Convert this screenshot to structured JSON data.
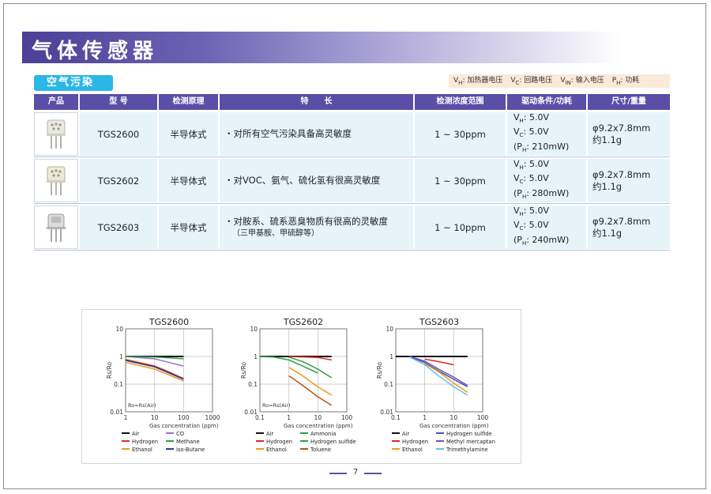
{
  "page": {
    "title": "气体传感器",
    "category": "空气污染",
    "page_number": "7"
  },
  "legend": [
    {
      "sym": "V",
      "sub": "H",
      "text": ": 加热器电压"
    },
    {
      "sym": "V",
      "sub": "C",
      "text": ": 回路电压"
    },
    {
      "sym": "V",
      "sub": "IN",
      "text": ": 输入电压"
    },
    {
      "sym": "P",
      "sub": "H",
      "text": ": 功耗"
    }
  ],
  "table": {
    "headers": [
      "产品",
      "型 号",
      "检测原理",
      "特　　长",
      "检测浓度范围",
      "驱动条件/功耗",
      "尺寸/重量"
    ],
    "rows": [
      {
        "model": "TGS2600",
        "principle": "半导体式",
        "feature": "・对所有空气污染具备高灵敏度",
        "feature_sub": "",
        "range": "1 ~ 30ppm",
        "vh": "5.0V",
        "vc": "5.0V",
        "ph": "210mW",
        "size": "φ9.2x7.8mm",
        "weight": "约1.1g"
      },
      {
        "model": "TGS2602",
        "principle": "半导体式",
        "feature": "・对VOC、氨气、硫化氢有很高灵敏度",
        "feature_sub": "",
        "range": "1 ~ 30ppm",
        "vh": "5.0V",
        "vc": "5.0V",
        "ph": "280mW",
        "size": "φ9.2x7.8mm",
        "weight": "约1.1g"
      },
      {
        "model": "TGS2603",
        "principle": "半导体式",
        "feature": "・对胺系、硫系恶臭物质有很高的灵敏度",
        "feature_sub": "（三甲基胺、甲硫醇等）",
        "range": "1 ~ 10ppm",
        "vh": "5.0V",
        "vc": "5.0V",
        "ph": "240mW",
        "size": "φ9.2x7.8mm",
        "weight": "约1.1g"
      }
    ]
  },
  "colors": {
    "Air": "#111111",
    "Hydrogen": "#d2301e",
    "Ethanol": "#ee9a1a",
    "CO": "#9b6fcf",
    "Methane": "#2e9e48",
    "iso-Butane": "#2a3f9c",
    "Ammonia": "#2e9e48",
    "Hydrogen sulfide": "#2e9e48",
    "Toluene": "#b8531c",
    "Hydrogen sulfide 3": "#3a56b8",
    "Methyl mercaptan": "#7b4ab8",
    "Trimethylamine": "#6cc0e6"
  },
  "chart_data": [
    {
      "type": "line",
      "title": "TGS2600",
      "xlabel": "Gas concentration (ppm)",
      "ylabel": "Rs/Ro",
      "annotation": "Ro=Rs(Air)",
      "x_scale": "log",
      "y_scale": "log",
      "xlim": [
        1,
        1000
      ],
      "ylim": [
        0.01,
        10
      ],
      "x_ticks": [
        "1",
        "10",
        "100",
        "1000"
      ],
      "y_ticks": [
        "10",
        "1",
        "0.1",
        "0.01"
      ],
      "grid": true,
      "legend_position": "bottom",
      "series": [
        {
          "name": "Air",
          "color": "#111111",
          "points": [
            [
              1,
              1
            ],
            [
              100,
              1
            ]
          ]
        },
        {
          "name": "CO",
          "color": "#9b6fcf",
          "points": [
            [
              1,
              1
            ],
            [
              10,
              0.82
            ],
            [
              30,
              0.62
            ],
            [
              100,
              0.45
            ]
          ]
        },
        {
          "name": "Hydrogen",
          "color": "#d2301e",
          "points": [
            [
              1,
              0.78
            ],
            [
              10,
              0.45
            ],
            [
              30,
              0.28
            ],
            [
              100,
              0.16
            ]
          ]
        },
        {
          "name": "Methane",
          "color": "#2e9e48",
          "points": [
            [
              1,
              1
            ],
            [
              10,
              0.95
            ],
            [
              30,
              0.9
            ],
            [
              100,
              0.82
            ]
          ]
        },
        {
          "name": "Ethanol",
          "color": "#ee9a1a",
          "points": [
            [
              1,
              0.62
            ],
            [
              10,
              0.35
            ],
            [
              30,
              0.22
            ],
            [
              100,
              0.13
            ]
          ]
        },
        {
          "name": "iso-Butane",
          "color": "#2a3f9c",
          "points": [
            [
              1,
              0.72
            ],
            [
              10,
              0.42
            ],
            [
              30,
              0.26
            ],
            [
              100,
              0.15
            ]
          ]
        }
      ]
    },
    {
      "type": "line",
      "title": "TGS2602",
      "xlabel": "Gas concentration (ppm)",
      "ylabel": "Rs/Ro",
      "annotation": "Ro=Rs(Air)",
      "x_scale": "log",
      "y_scale": "log",
      "xlim": [
        0.1,
        100
      ],
      "ylim": [
        0.01,
        10
      ],
      "x_ticks": [
        "0.1",
        "1",
        "10",
        "100"
      ],
      "y_ticks": [
        "10",
        "1",
        "0.1",
        "0.01"
      ],
      "grid": true,
      "legend_position": "bottom",
      "series": [
        {
          "name": "Air",
          "color": "#111111",
          "points": [
            [
              0.1,
              1
            ],
            [
              30,
              1
            ]
          ]
        },
        {
          "name": "Ammonia",
          "color": "#2e9e48",
          "points": [
            [
              1,
              0.95
            ],
            [
              3,
              0.65
            ],
            [
              10,
              0.35
            ],
            [
              30,
              0.17
            ]
          ]
        },
        {
          "name": "Hydrogen",
          "color": "#d2301e",
          "points": [
            [
              1,
              1
            ],
            [
              10,
              0.92
            ],
            [
              30,
              0.75
            ]
          ]
        },
        {
          "name": "Hydrogen sulfide",
          "color": "#2e9e48",
          "points": [
            [
              0.1,
              1
            ],
            [
              0.3,
              0.95
            ],
            [
              1,
              0.75
            ],
            [
              3,
              0.45
            ],
            [
              10,
              0.25
            ]
          ]
        },
        {
          "name": "Ethanol",
          "color": "#ee9a1a",
          "points": [
            [
              1,
              0.4
            ],
            [
              3,
              0.2
            ],
            [
              10,
              0.08
            ],
            [
              30,
              0.04
            ]
          ]
        },
        {
          "name": "Toluene",
          "color": "#b8531c",
          "points": [
            [
              1,
              0.2
            ],
            [
              3,
              0.09
            ],
            [
              10,
              0.035
            ],
            [
              30,
              0.017
            ]
          ]
        }
      ]
    },
    {
      "type": "line",
      "title": "TGS2603",
      "xlabel": "Gas concentration (ppm)",
      "ylabel": "Rs/Ro",
      "annotation": "",
      "x_scale": "log",
      "y_scale": "log",
      "xlim": [
        0.1,
        100
      ],
      "ylim": [
        0.01,
        10
      ],
      "x_ticks": [
        "0.1",
        "1",
        "10",
        "100"
      ],
      "y_ticks": [
        "10",
        "1",
        "0.1",
        "0.01"
      ],
      "grid": true,
      "legend_position": "bottom",
      "series": [
        {
          "name": "Air",
          "color": "#111111",
          "points": [
            [
              0.1,
              1
            ],
            [
              30,
              1
            ]
          ]
        },
        {
          "name": "Hydrogen sulfide",
          "color": "#3a56b8",
          "points": [
            [
              0.3,
              1
            ],
            [
              1,
              0.6
            ],
            [
              3,
              0.3
            ],
            [
              10,
              0.15
            ],
            [
              30,
              0.08
            ]
          ]
        },
        {
          "name": "Hydrogen",
          "color": "#d2301e",
          "points": [
            [
              1,
              0.8
            ],
            [
              3,
              0.65
            ],
            [
              10,
              0.5
            ]
          ]
        },
        {
          "name": "Methyl mercaptan",
          "color": "#7b4ab8",
          "points": [
            [
              0.3,
              1
            ],
            [
              1,
              0.68
            ],
            [
              3,
              0.35
            ],
            [
              10,
              0.18
            ],
            [
              30,
              0.09
            ]
          ]
        },
        {
          "name": "Ethanol",
          "color": "#ee9a1a",
          "points": [
            [
              1,
              0.55
            ],
            [
              3,
              0.28
            ],
            [
              10,
              0.11
            ],
            [
              30,
              0.05
            ]
          ]
        },
        {
          "name": "Trimethylamine",
          "color": "#6cc0e6",
          "points": [
            [
              0.3,
              0.95
            ],
            [
              1,
              0.5
            ],
            [
              3,
              0.2
            ],
            [
              10,
              0.08
            ],
            [
              30,
              0.04
            ]
          ]
        }
      ]
    }
  ]
}
